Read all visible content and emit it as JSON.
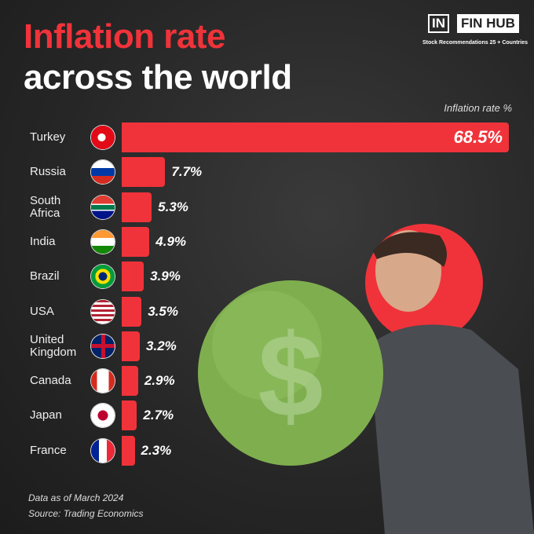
{
  "brand": {
    "mark": "IN",
    "name": "FIN HUB",
    "tagline": "Stock Recommendations 25 + Countries"
  },
  "chart_data": {
    "type": "bar",
    "orientation": "horizontal",
    "title_lines": [
      "Inflation rate",
      "across the world"
    ],
    "axis_label": "Inflation rate %",
    "categories": [
      "Turkey",
      "Russia",
      "South Africa",
      "India",
      "Brazil",
      "USA",
      "United Kingdom",
      "Canada",
      "Japan",
      "France"
    ],
    "values": [
      68.5,
      7.7,
      5.3,
      4.9,
      3.9,
      3.5,
      3.2,
      2.9,
      2.7,
      2.3
    ],
    "value_labels": [
      "68.5%",
      "7.7%",
      "5.3%",
      "4.9%",
      "3.9%",
      "3.5%",
      "3.2%",
      "2.9%",
      "2.7%",
      "2.3%"
    ],
    "color": "#f0333a",
    "notes": [
      "Data as of March 2024",
      "Source: Trading Economics"
    ]
  }
}
